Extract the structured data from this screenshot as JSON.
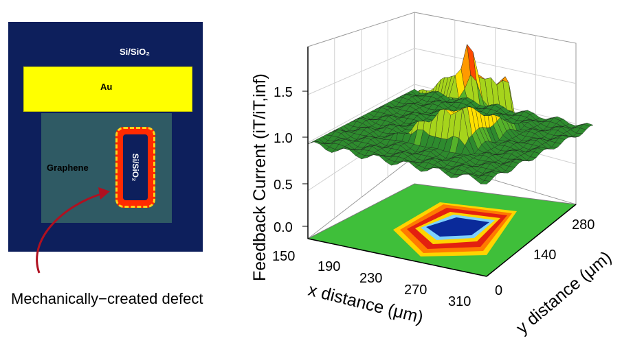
{
  "schematic": {
    "substrate_label": "Si/SiO₂",
    "electrode_label": "Au",
    "graphene_label": "Graphene",
    "defect_inner_label": "Si/SiO₂",
    "caption": "Mechanically−created defect",
    "colors": {
      "substrate": "#0d1f5c",
      "gold": "#ffff00",
      "graphene": "#2f5a64",
      "defect": "#ff2a00",
      "arrow": "#b01020"
    }
  },
  "chart_data": {
    "type": "surface3d",
    "zlabel": "Feedback Current (iT/iT,inf)",
    "xlabel": "x distance (μm)",
    "ylabel": "y distance (μm)",
    "z_ticks": [
      "0.0",
      "0.5",
      "1.0",
      "1.5"
    ],
    "x_ticks": [
      "150",
      "190",
      "230",
      "270",
      "310"
    ],
    "y_ticks": [
      "0",
      "140",
      "280"
    ],
    "xlim": [
      150,
      310
    ],
    "ylim": [
      0,
      280
    ],
    "zlim": [
      0,
      1.9
    ],
    "baseline": 1.0,
    "peak": 1.75,
    "feature": "rectangular ring of enhanced feedback current around the defect, with a floor contour map",
    "colormap": [
      "#0a2a9a",
      "#1aa0ff",
      "#2cc15a",
      "#9acd32",
      "#ffe000",
      "#ff8000",
      "#e00000"
    ]
  }
}
